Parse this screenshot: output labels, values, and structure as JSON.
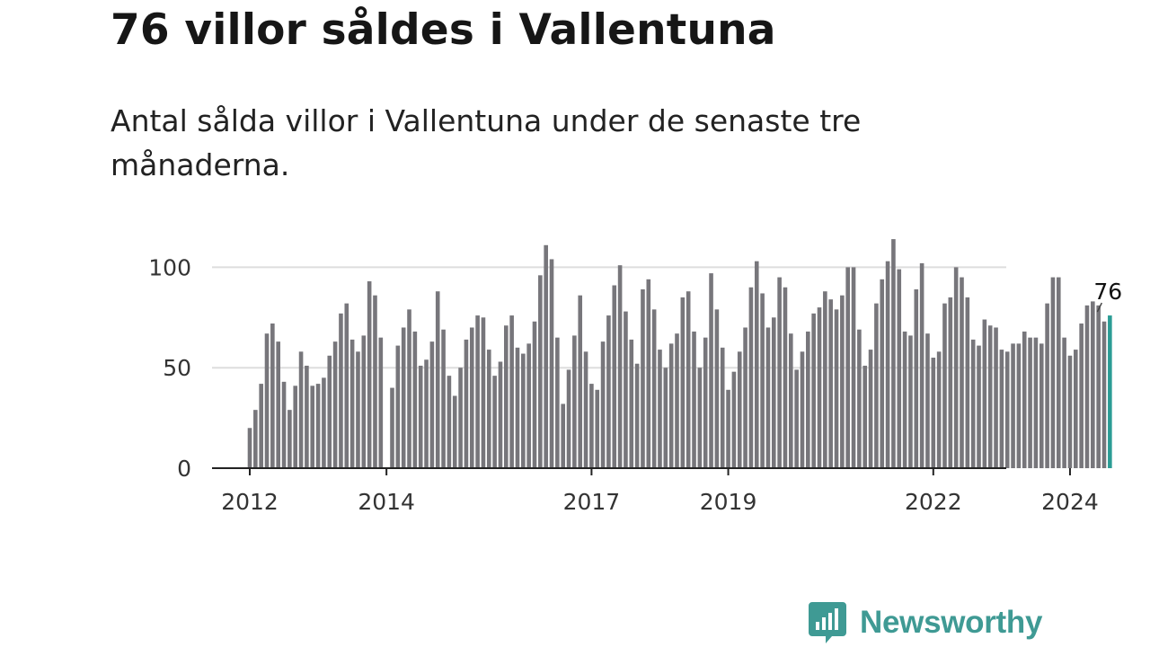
{
  "title": "76 villor såldes i Vallentuna",
  "subtitle": "Antal sålda villor i Vallentuna under de senaste tre månaderna.",
  "brand": {
    "name": "Newsworthy",
    "color": "#3f9a94"
  },
  "colors": {
    "bar": "#77767b",
    "highlight": "#2b9c95",
    "grid": "#dddddd",
    "axis": "#222222"
  },
  "chart_data": {
    "type": "bar",
    "title": "76 villor såldes i Vallentuna",
    "subtitle": "Antal sålda villor i Vallentuna under de senaste tre månaderna.",
    "xlabel": "",
    "ylabel": "",
    "ylim": [
      0,
      120
    ],
    "yticks": [
      0,
      50,
      100
    ],
    "grid": true,
    "first_month": "2012-01",
    "x_tick_labels": [
      {
        "label": "2012",
        "index": 0
      },
      {
        "label": "2014",
        "index": 24
      },
      {
        "label": "2017",
        "index": 60
      },
      {
        "label": "2019",
        "index": 84
      },
      {
        "label": "2022",
        "index": 120
      },
      {
        "label": "2024",
        "index": 144
      }
    ],
    "values": [
      20,
      29,
      42,
      67,
      72,
      63,
      43,
      29,
      41,
      58,
      51,
      41,
      42,
      45,
      56,
      63,
      77,
      82,
      64,
      58,
      66,
      93,
      86,
      65,
      0,
      40,
      61,
      70,
      79,
      68,
      51,
      54,
      63,
      88,
      69,
      46,
      36,
      50,
      64,
      70,
      76,
      75,
      59,
      46,
      53,
      71,
      76,
      60,
      57,
      62,
      73,
      96,
      111,
      104,
      65,
      32,
      49,
      66,
      86,
      58,
      42,
      39,
      63,
      76,
      91,
      101,
      78,
      64,
      52,
      89,
      94,
      79,
      59,
      50,
      62,
      67,
      85,
      88,
      68,
      50,
      65,
      97,
      79,
      60,
      39,
      48,
      58,
      70,
      90,
      103,
      87,
      70,
      75,
      95,
      90,
      67,
      49,
      58,
      68,
      77,
      80,
      88,
      84,
      79,
      86,
      100,
      100,
      69,
      51,
      59,
      82,
      94,
      103,
      114,
      99,
      68,
      66,
      89,
      102,
      67,
      55,
      58,
      82,
      85,
      100,
      95,
      85,
      64,
      61,
      74,
      71,
      70,
      59,
      58,
      62,
      62,
      68,
      65,
      65,
      62,
      82,
      95,
      95,
      65,
      56,
      59,
      72,
      81,
      83,
      81,
      73,
      76
    ],
    "highlight_index": 151,
    "data_label": "76"
  }
}
